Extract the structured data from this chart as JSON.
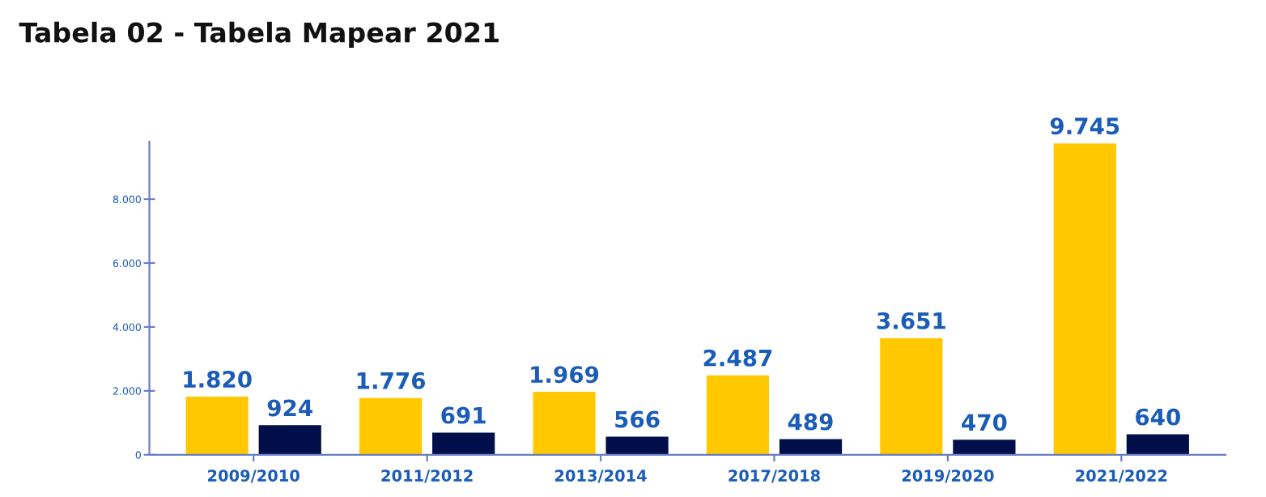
{
  "chart_data": {
    "type": "bar",
    "title": "Tabela 02 - Tabela Mapear 2021",
    "categories": [
      "2009/2010",
      "2011/2012",
      "2013/2014",
      "2017/2018",
      "2019/2020",
      "2021/2022"
    ],
    "series": [
      {
        "color": "#ffc800",
        "values": [
          1820,
          1776,
          1969,
          2487,
          3651,
          9745
        ],
        "value_labels": [
          "1.820",
          "1.776",
          "1.969",
          "2.487",
          "3.651",
          "9.745"
        ]
      },
      {
        "color": "#000f4a",
        "values": [
          924,
          691,
          566,
          489,
          470,
          640
        ],
        "value_labels": [
          "924",
          "691",
          "566",
          "489",
          "470",
          "640"
        ]
      }
    ],
    "ylim": [
      0,
      9800
    ],
    "yticks": [
      0,
      {
        "value": 2000,
        "label": "2.000"
      },
      {
        "value": 4000,
        "label": "4.000"
      },
      {
        "value": 6000,
        "label": "6.000"
      },
      {
        "value": 8000,
        "label": "8.000"
      }
    ],
    "grid": false,
    "legend": false
  }
}
